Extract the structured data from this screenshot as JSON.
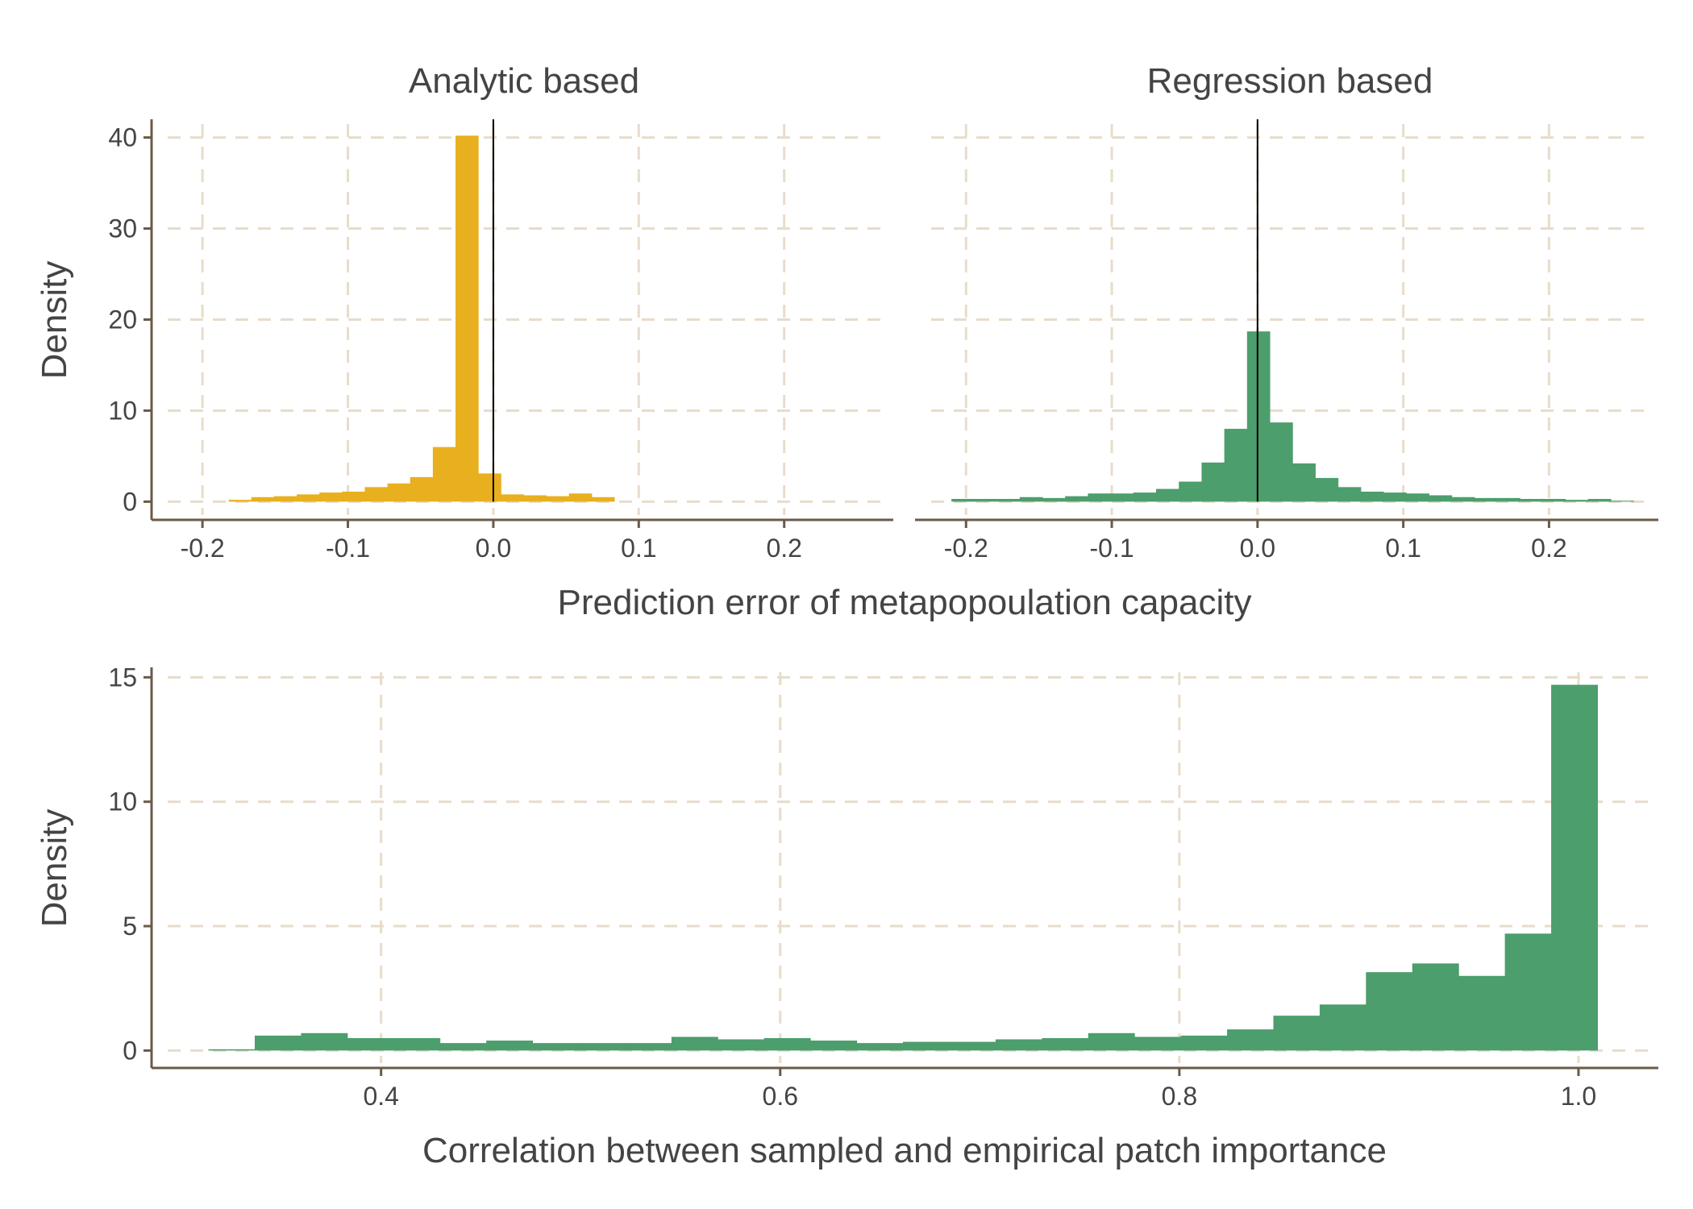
{
  "colors": {
    "analytic": "#e8b01e",
    "regression": "#4c9e6c",
    "grid": "#e8dccb",
    "axis": "#6b5a48",
    "text": "#444444"
  },
  "top": {
    "ylabel": "Density",
    "xlabel": "Prediction error of metapopoulation capacity"
  },
  "bottom": {
    "ylabel": "Density",
    "xlabel": "Correlation between sampled and empirical patch importance"
  },
  "chart_data": [
    {
      "type": "bar",
      "facet": "Analytic based",
      "title": "Analytic based",
      "xlabel": "Prediction error of metapopoulation capacity",
      "ylabel": "Density",
      "xlim": [
        -0.235,
        0.275
      ],
      "ylim": [
        -2,
        42
      ],
      "xticks": [
        -0.2,
        -0.1,
        0.0,
        0.1,
        0.2
      ],
      "xtick_labels": [
        "-0.2",
        "-0.1",
        "0.0",
        "0.1",
        "0.2"
      ],
      "yticks": [
        0,
        10,
        20,
        30,
        40
      ],
      "ytick_labels": [
        "0",
        "10",
        "20",
        "30",
        "40"
      ],
      "bin_width": 0.0156,
      "bin_start": -0.182,
      "values": [
        0.2,
        0.5,
        0.6,
        0.8,
        1.0,
        1.1,
        1.6,
        2.0,
        2.7,
        6.0,
        40.2,
        3.1,
        0.8,
        0.7,
        0.6,
        0.9,
        0.5
      ],
      "vline": 0.0,
      "grid": true
    },
    {
      "type": "bar",
      "facet": "Regression based",
      "title": "Regression based",
      "xlabel": "Prediction error of metapopoulation capacity",
      "ylabel": "Density",
      "xlim": [
        -0.235,
        0.275
      ],
      "ylim": [
        -2,
        42
      ],
      "xticks": [
        -0.2,
        -0.1,
        0.0,
        0.1,
        0.2
      ],
      "xtick_labels": [
        "-0.2",
        "-0.1",
        "0.0",
        "0.1",
        "0.2"
      ],
      "yticks": [
        0,
        10,
        20,
        30,
        40
      ],
      "ytick_labels": [
        "0",
        "10",
        "20",
        "30",
        "40"
      ],
      "bin_width": 0.0156,
      "bin_start": -0.21,
      "values": [
        0.3,
        0.3,
        0.3,
        0.5,
        0.4,
        0.6,
        0.9,
        0.9,
        1.0,
        1.4,
        2.2,
        4.3,
        8.0,
        18.7,
        8.7,
        4.2,
        2.6,
        1.6,
        1.1,
        1.0,
        0.9,
        0.7,
        0.5,
        0.4,
        0.4,
        0.3,
        0.3,
        0.2,
        0.3,
        0.1
      ],
      "vline": 0.0,
      "grid": true
    },
    {
      "type": "bar",
      "title": "",
      "xlabel": "Correlation between sampled and empirical patch importance",
      "ylabel": "Density",
      "xlim": [
        0.285,
        1.04
      ],
      "ylim": [
        -0.7,
        15.4
      ],
      "xticks": [
        0.4,
        0.6,
        0.8,
        1.0
      ],
      "xtick_labels": [
        "0.4",
        "0.6",
        "0.8",
        "1.0"
      ],
      "yticks": [
        0,
        5,
        10,
        15
      ],
      "ytick_labels": [
        "0",
        "5",
        "10",
        "15"
      ],
      "bin_width": 0.0232,
      "bin_start": 0.3135,
      "values": [
        0.05,
        0.6,
        0.7,
        0.5,
        0.5,
        0.3,
        0.4,
        0.3,
        0.3,
        0.3,
        0.55,
        0.45,
        0.5,
        0.4,
        0.3,
        0.35,
        0.35,
        0.45,
        0.5,
        0.7,
        0.55,
        0.6,
        0.85,
        1.4,
        1.85,
        3.15,
        3.5,
        3.0,
        4.7,
        14.7
      ],
      "grid": true
    }
  ]
}
